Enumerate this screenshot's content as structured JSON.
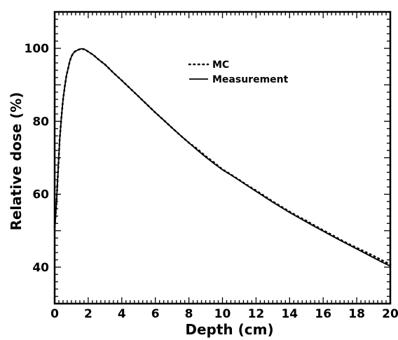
{
  "chart_data": {
    "type": "line",
    "title": "",
    "xlabel": "Depth (cm)",
    "ylabel": "Relative dose  (%)",
    "xlim": [
      0,
      20
    ],
    "ylim": [
      30,
      110
    ],
    "xticks": [
      0,
      2,
      4,
      6,
      8,
      10,
      12,
      14,
      16,
      18,
      20
    ],
    "yticks": [
      40,
      60,
      80,
      100
    ],
    "grid": false,
    "legend_position": "top-right",
    "series": [
      {
        "name": "MC",
        "style": "dotted",
        "color": "#000000",
        "x": [
          0,
          0.1,
          0.2,
          0.3,
          0.4,
          0.5,
          0.6,
          0.7,
          0.8,
          0.9,
          1.0,
          1.1,
          1.2,
          1.4,
          1.6,
          1.8,
          2.0,
          2.3,
          2.6,
          3.0,
          3.5,
          4.0,
          4.5,
          5.0,
          5.5,
          6.0,
          6.5,
          7.0,
          7.5,
          8.0,
          8.5,
          9.0,
          9.5,
          10.0,
          10.5,
          11.0,
          11.5,
          12.0,
          12.5,
          13.0,
          13.5,
          14.0,
          14.5,
          15.0,
          15.5,
          16.0,
          16.5,
          17.0,
          17.5,
          18.0,
          18.5,
          19.0,
          19.5,
          20.0
        ],
        "values": [
          51,
          57,
          66,
          75,
          81,
          86,
          89.5,
          92.5,
          94.5,
          96.5,
          97.8,
          98.6,
          99.1,
          99.6,
          99.9,
          99.7,
          99.1,
          98.2,
          97.0,
          95.6,
          93.3,
          91.2,
          89.0,
          86.8,
          84.6,
          82.4,
          80.3,
          78.2,
          76.1,
          74.1,
          72.4,
          70.4,
          68.7,
          66.8,
          65.4,
          63.9,
          62.4,
          61.0,
          59.5,
          58.0,
          56.6,
          55.2,
          53.9,
          52.7,
          51.4,
          50.1,
          48.9,
          47.6,
          46.4,
          45.3,
          44.2,
          43.1,
          41.9,
          40.7
        ]
      },
      {
        "name": "Measurement",
        "style": "solid",
        "color": "#000000",
        "x": [
          0,
          0.1,
          0.2,
          0.3,
          0.4,
          0.5,
          0.6,
          0.7,
          0.8,
          0.9,
          1.0,
          1.1,
          1.2,
          1.4,
          1.6,
          1.8,
          2.0,
          2.3,
          2.6,
          3.0,
          3.5,
          4.0,
          4.5,
          5.0,
          5.5,
          6.0,
          6.5,
          7.0,
          7.5,
          8.0,
          8.5,
          9.0,
          9.5,
          10.0,
          10.5,
          11.0,
          11.5,
          12.0,
          12.5,
          13.0,
          13.5,
          14.0,
          14.5,
          15.0,
          15.5,
          16.0,
          16.5,
          17.0,
          17.5,
          18.0,
          18.5,
          19.0,
          19.5,
          20.0
        ],
        "values": [
          50,
          57,
          66,
          75,
          81,
          86,
          89.5,
          92.5,
          94.5,
          96.5,
          97.8,
          98.6,
          99.1,
          99.6,
          99.9,
          99.7,
          99.1,
          98.2,
          97.0,
          95.6,
          93.3,
          91.2,
          89.0,
          86.8,
          84.6,
          82.4,
          80.3,
          78.2,
          76.1,
          74.1,
          72.1,
          70.2,
          68.4,
          66.7,
          65.3,
          63.8,
          62.3,
          60.8,
          59.3,
          57.8,
          56.4,
          55.0,
          53.7,
          52.4,
          51.1,
          49.9,
          48.6,
          47.4,
          46.2,
          45.0,
          43.8,
          42.6,
          41.4,
          40.3
        ]
      }
    ]
  }
}
